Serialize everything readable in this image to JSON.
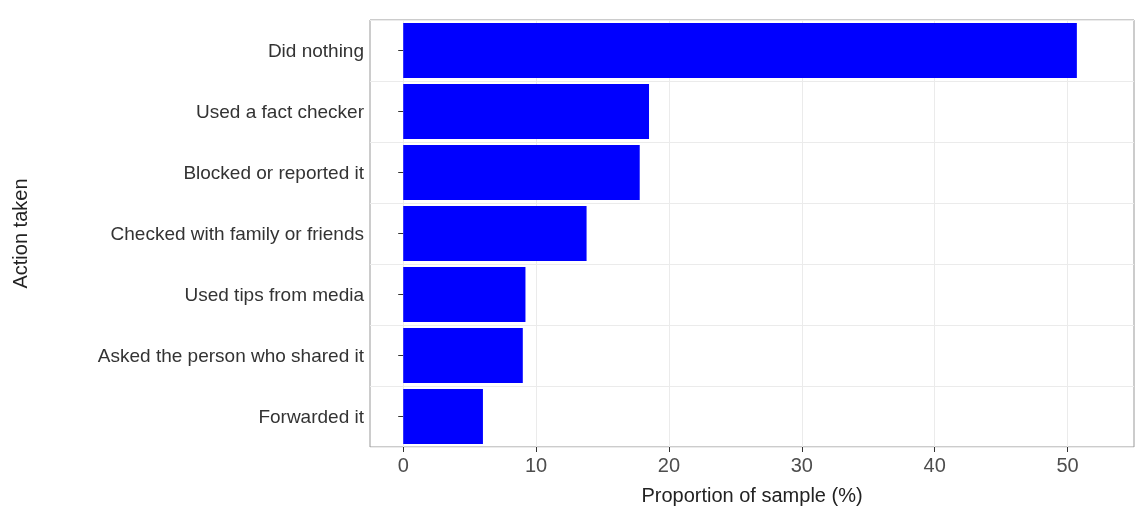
{
  "chart_data": {
    "type": "bar",
    "orientation": "horizontal",
    "xlabel": "Proportion of sample (%)",
    "ylabel": "Action taken",
    "categories": [
      "Did nothing",
      "Used a fact checker",
      "Blocked or reported it",
      "Checked with family or friends",
      "Used tips from media",
      "Asked the person who shared it",
      "Forwarded it"
    ],
    "values": [
      50.7,
      18.5,
      17.8,
      13.8,
      9.2,
      9.0,
      6.0
    ],
    "color": "#0000ff",
    "xlim": [
      -2.5,
      55
    ],
    "xticks": [
      0,
      10,
      20,
      30,
      40,
      50
    ],
    "grid": true
  }
}
